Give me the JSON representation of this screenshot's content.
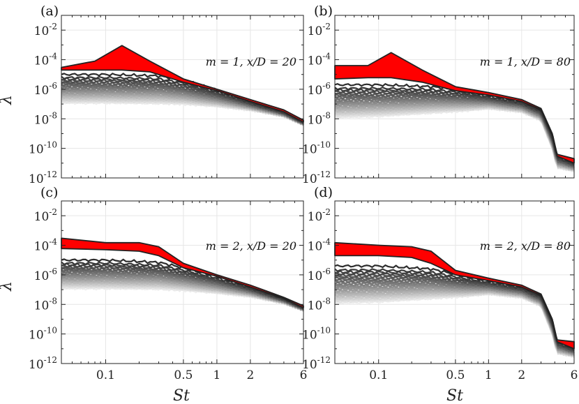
{
  "figure": {
    "x_label": "St",
    "y_label": "λ",
    "x_tick_labels": [
      "0.1",
      "0.5",
      "1",
      "2",
      "6"
    ],
    "y_tick_labels": [
      "10",
      "10",
      "10",
      "10",
      "10",
      "10"
    ],
    "y_tick_exponents": [
      "-2",
      "-4",
      "-6",
      "-8",
      "-10",
      "-12"
    ],
    "colors": {
      "leading_band": "#ff0000",
      "outline": "#222222",
      "grid": "#e6e6e6"
    }
  },
  "chart_data": [
    {
      "type": "line",
      "panel": "(a)",
      "annotation": "m = 1, x/D = 20",
      "x_scale": "log",
      "y_scale": "log",
      "xlim": [
        0.04,
        6
      ],
      "ylim": [
        1e-12,
        0.1
      ],
      "xlabel": "",
      "ylabel": "λ",
      "leading_band": {
        "st": [
          0.04,
          0.08,
          0.14,
          0.25,
          0.5,
          1,
          2,
          4,
          6
        ],
        "upper": [
          3e-05,
          8e-05,
          0.0009,
          8e-05,
          5e-06,
          1e-06,
          2e-07,
          4e-08,
          8e-09
        ],
        "lower": [
          2e-05,
          2e-05,
          2e-05,
          1.5e-05,
          3e-06,
          8e-07,
          1.5e-07,
          3e-08,
          6e-09
        ]
      },
      "suboptimal_series": {
        "count": 40,
        "st": [
          0.04,
          0.1,
          0.3,
          0.5,
          1,
          2,
          4,
          6
        ],
        "first": [
          1e-05,
          1e-05,
          8e-06,
          4e-06,
          9e-07,
          1.5e-07,
          3e-08,
          6e-09
        ],
        "last": [
          1.2e-07,
          1.2e-07,
          1.1e-07,
          1e-07,
          7e-08,
          4e-08,
          1.5e-08,
          4e-09
        ]
      }
    },
    {
      "type": "line",
      "panel": "(b)",
      "annotation": "m = 1, x/D = 80",
      "x_scale": "log",
      "y_scale": "log",
      "xlim": [
        0.04,
        6
      ],
      "ylim": [
        1e-12,
        0.1
      ],
      "xlabel": "",
      "ylabel": "",
      "leading_band": {
        "st": [
          0.04,
          0.08,
          0.13,
          0.25,
          0.5,
          1,
          2,
          3,
          3.8,
          4.2,
          6
        ],
        "upper": [
          4e-05,
          4e-05,
          0.0003,
          2e-05,
          1.5e-06,
          6e-07,
          2e-07,
          5e-08,
          1e-09,
          4e-11,
          2e-11
        ],
        "lower": [
          5e-06,
          6e-06,
          6e-06,
          3e-06,
          8e-07,
          4e-07,
          1.5e-07,
          4e-08,
          8e-10,
          3e-11,
          1e-11
        ]
      },
      "suboptimal_series": {
        "count": 40,
        "st": [
          0.04,
          0.1,
          0.3,
          0.6,
          1,
          2,
          3,
          3.8,
          4.2,
          6
        ],
        "first": [
          2e-06,
          2e-06,
          1.5e-06,
          8e-07,
          4e-07,
          1.5e-07,
          4e-08,
          8e-10,
          3e-11,
          1e-11
        ],
        "last": [
          1.2e-08,
          1.5e-08,
          2.5e-08,
          3.5e-08,
          5e-08,
          3e-08,
          8e-09,
          1e-10,
          5e-12,
          3e-12
        ]
      }
    },
    {
      "type": "line",
      "panel": "(c)",
      "annotation": "m = 2, x/D = 20",
      "x_scale": "log",
      "y_scale": "log",
      "xlim": [
        0.04,
        6
      ],
      "ylim": [
        1e-12,
        0.1
      ],
      "xlabel": "St",
      "ylabel": "λ",
      "leading_band": {
        "st": [
          0.04,
          0.1,
          0.2,
          0.3,
          0.5,
          1,
          2,
          4,
          6
        ],
        "upper": [
          0.0003,
          0.00015,
          0.00015,
          8e-05,
          6e-06,
          1e-06,
          2e-07,
          3e-08,
          8e-09
        ],
        "lower": [
          6e-05,
          5e-05,
          4e-05,
          2e-05,
          3e-06,
          8e-07,
          1.5e-07,
          2.5e-08,
          6e-09
        ]
      },
      "suboptimal_series": {
        "count": 40,
        "st": [
          0.04,
          0.1,
          0.3,
          0.5,
          1,
          2,
          4,
          6
        ],
        "first": [
          1e-05,
          1e-05,
          7e-06,
          3e-06,
          8e-07,
          1.5e-07,
          2.5e-08,
          6e-09
        ],
        "last": [
          1.2e-07,
          1.2e-07,
          1.1e-07,
          9e-08,
          6e-08,
          3.5e-08,
          1.2e-08,
          4e-09
        ]
      }
    },
    {
      "type": "line",
      "panel": "(d)",
      "annotation": "m = 2, x/D = 80",
      "x_scale": "log",
      "y_scale": "log",
      "xlim": [
        0.04,
        6
      ],
      "ylim": [
        1e-12,
        0.1
      ],
      "xlabel": "St",
      "ylabel": "",
      "leading_band": {
        "st": [
          0.04,
          0.1,
          0.2,
          0.3,
          0.5,
          1,
          2,
          3,
          3.8,
          4.2,
          6
        ],
        "upper": [
          0.00015,
          0.0001,
          8e-05,
          4e-05,
          2e-06,
          6e-07,
          2e-07,
          5e-08,
          1e-09,
          4e-11,
          3e-11
        ],
        "lower": [
          2e-05,
          2e-05,
          1.5e-05,
          6e-06,
          1e-06,
          4e-07,
          1.5e-07,
          4e-08,
          8e-10,
          3e-11,
          1e-11
        ]
      },
      "suboptimal_series": {
        "count": 40,
        "st": [
          0.04,
          0.1,
          0.3,
          0.6,
          1,
          2,
          3,
          3.8,
          4.2,
          6
        ],
        "first": [
          4e-06,
          4e-06,
          2.5e-06,
          8e-07,
          4e-07,
          1.5e-07,
          4e-08,
          8e-10,
          3e-11,
          1e-11
        ],
        "last": [
          1.2e-08,
          1.5e-08,
          2.5e-08,
          3.5e-08,
          5e-08,
          3e-08,
          8e-09,
          1e-10,
          5e-12,
          3e-12
        ]
      }
    }
  ]
}
